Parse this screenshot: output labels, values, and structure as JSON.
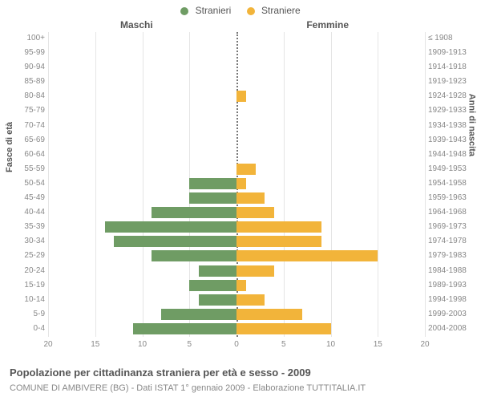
{
  "chart": {
    "type": "population-pyramid",
    "title": "Popolazione per cittadinanza straniera per età e sesso - 2009",
    "subtitle": "COMUNE DI AMBIVERE (BG) - Dati ISTAT 1° gennaio 2009 - Elaborazione TUTTITALIA.IT",
    "legend": {
      "male": "Stranieri",
      "female": "Straniere"
    },
    "side_label_male": "Maschi",
    "side_label_female": "Femmine",
    "y_label_left": "Fasce di età",
    "y_label_right": "Anni di nascita",
    "colors": {
      "male": "#6f9c64",
      "female": "#f2b43a",
      "grid": "#e5e5e5",
      "center": "#777777",
      "background": "#ffffff",
      "text": "#555555",
      "tick": "#888888"
    },
    "x_max": 20,
    "x_ticks": [
      20,
      15,
      10,
      5,
      0,
      5,
      10,
      15,
      20
    ],
    "fontsize_title": 13,
    "fontsize_axis": 11,
    "fontsize_tick": 10,
    "rows": [
      {
        "age": "100+",
        "year": "≤ 1908",
        "m": 0,
        "f": 0
      },
      {
        "age": "95-99",
        "year": "1909-1913",
        "m": 0,
        "f": 0
      },
      {
        "age": "90-94",
        "year": "1914-1918",
        "m": 0,
        "f": 0
      },
      {
        "age": "85-89",
        "year": "1919-1923",
        "m": 0,
        "f": 0
      },
      {
        "age": "80-84",
        "year": "1924-1928",
        "m": 0,
        "f": 1
      },
      {
        "age": "75-79",
        "year": "1929-1933",
        "m": 0,
        "f": 0
      },
      {
        "age": "70-74",
        "year": "1934-1938",
        "m": 0,
        "f": 0
      },
      {
        "age": "65-69",
        "year": "1939-1943",
        "m": 0,
        "f": 0
      },
      {
        "age": "60-64",
        "year": "1944-1948",
        "m": 0,
        "f": 0
      },
      {
        "age": "55-59",
        "year": "1949-1953",
        "m": 0,
        "f": 2
      },
      {
        "age": "50-54",
        "year": "1954-1958",
        "m": 5,
        "f": 1
      },
      {
        "age": "45-49",
        "year": "1959-1963",
        "m": 5,
        "f": 3
      },
      {
        "age": "40-44",
        "year": "1964-1968",
        "m": 9,
        "f": 4
      },
      {
        "age": "35-39",
        "year": "1969-1973",
        "m": 14,
        "f": 9
      },
      {
        "age": "30-34",
        "year": "1974-1978",
        "m": 13,
        "f": 9
      },
      {
        "age": "25-29",
        "year": "1979-1983",
        "m": 9,
        "f": 15
      },
      {
        "age": "20-24",
        "year": "1984-1988",
        "m": 4,
        "f": 4
      },
      {
        "age": "15-19",
        "year": "1989-1993",
        "m": 5,
        "f": 1
      },
      {
        "age": "10-14",
        "year": "1994-1998",
        "m": 4,
        "f": 3
      },
      {
        "age": "5-9",
        "year": "1999-2003",
        "m": 8,
        "f": 7
      },
      {
        "age": "0-4",
        "year": "2004-2008",
        "m": 11,
        "f": 10
      }
    ]
  }
}
